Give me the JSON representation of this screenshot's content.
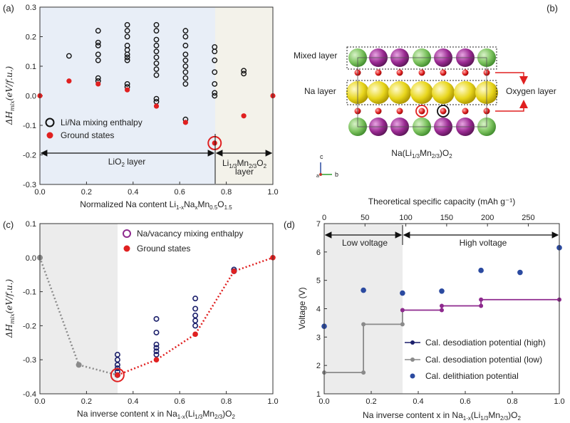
{
  "panels": {
    "a": {
      "panel_label": "(a)",
      "ylabel": "ΔH",
      "ylabel_sub": "mix",
      "ylabel_unit": "(eV/f.u.)",
      "xlabel": "Normalized Na content Li1-xNaxMn0.5O1.5",
      "region_left": "LiO2 layer",
      "region_right_line1": "Li1/3Mn2/3O2",
      "region_right_line2": "layer",
      "legend": [
        "Li/Na mixing enthalpy",
        "Ground states"
      ]
    },
    "b": {
      "panel_label": "(b)",
      "mixed_layer": "Mixed layer",
      "na_layer": "Na layer",
      "oxygen_layer": "Oxygen layer",
      "formula": "Na(Li1/3Mn2/3)O2",
      "axis_c": "c",
      "axis_b": "b",
      "axis_a": "a"
    },
    "c": {
      "panel_label": "(c)",
      "ylabel": "ΔH",
      "ylabel_sub": "mix",
      "ylabel_unit": "(eV/f.u.)",
      "xlabel": "Na inverse content x in Na1-x(Li1/3Mn2/3)O2",
      "legend": [
        "Na/vacancy mixing enthalpy",
        "Ground states"
      ]
    },
    "d": {
      "panel_label": "(d)",
      "ylabel": "Voltage (V)",
      "xlabel": "Na inverse content x in Na1-x(Li1/3Mn2/3)O2",
      "top_xlabel": "Theoretical specific capacity (mAh g⁻¹)",
      "region_low": "Low voltage",
      "region_high": "High voltage",
      "legend": [
        "Cal. desodiation potential (high)",
        "Cal. desodiation potential (low)",
        "Cal. delithiation potential"
      ]
    }
  },
  "colors": {
    "navy": "#1b1f6b",
    "red": "#e02020",
    "grey": "#8a8a8a",
    "purple": "#8e2a8e",
    "blue": "#2b4aa0",
    "shade_blue": "#e8eef7",
    "shade_beige": "#f3f2ea",
    "shade_grey": "#ececec"
  },
  "chart_data": [
    {
      "id": "a",
      "type": "scatter",
      "xlim": [
        0,
        1
      ],
      "ylim": [
        -0.3,
        0.3
      ],
      "xticks": [
        "0.0",
        "0.2",
        "0.4",
        "0.6",
        "0.8",
        "1.0"
      ],
      "yticks": [
        "-0.3",
        "-0.2",
        "-0.1",
        "0.0",
        "0.1",
        "0.2",
        "0.3"
      ],
      "series": [
        {
          "name": "Li/Na mixing enthalpy",
          "points": [
            [
              0.125,
              0.135
            ],
            [
              0.25,
              0.22
            ],
            [
              0.25,
              0.18
            ],
            [
              0.25,
              0.17
            ],
            [
              0.25,
              0.14
            ],
            [
              0.25,
              0.12
            ],
            [
              0.25,
              0.06
            ],
            [
              0.25,
              0.05
            ],
            [
              0.375,
              0.24
            ],
            [
              0.375,
              0.22
            ],
            [
              0.375,
              0.2
            ],
            [
              0.375,
              0.17
            ],
            [
              0.375,
              0.155
            ],
            [
              0.375,
              0.14
            ],
            [
              0.375,
              0.13
            ],
            [
              0.375,
              0.12
            ],
            [
              0.375,
              0.04
            ],
            [
              0.375,
              0.03
            ],
            [
              0.5,
              0.24
            ],
            [
              0.5,
              0.22
            ],
            [
              0.5,
              0.19
            ],
            [
              0.5,
              0.17
            ],
            [
              0.5,
              0.15
            ],
            [
              0.5,
              0.13
            ],
            [
              0.5,
              0.11
            ],
            [
              0.5,
              0.09
            ],
            [
              0.5,
              0.07
            ],
            [
              0.5,
              -0.01
            ],
            [
              0.5,
              -0.02
            ],
            [
              0.625,
              0.22
            ],
            [
              0.625,
              0.2
            ],
            [
              0.625,
              0.17
            ],
            [
              0.625,
              0.14
            ],
            [
              0.625,
              0.12
            ],
            [
              0.625,
              0.1
            ],
            [
              0.625,
              0.08
            ],
            [
              0.625,
              0.06
            ],
            [
              0.625,
              0.04
            ],
            [
              0.625,
              -0.08
            ],
            [
              0.75,
              0.165
            ],
            [
              0.75,
              0.15
            ],
            [
              0.75,
              0.12
            ],
            [
              0.75,
              0.08
            ],
            [
              0.75,
              0.04
            ],
            [
              0.75,
              0.01
            ],
            [
              0.75,
              0.0
            ],
            [
              0.875,
              0.085
            ],
            [
              0.875,
              0.075
            ]
          ]
        },
        {
          "name": "Ground states",
          "points": [
            [
              0,
              0
            ],
            [
              0.125,
              0.05
            ],
            [
              0.25,
              0.04
            ],
            [
              0.375,
              0.02
            ],
            [
              0.5,
              -0.035
            ],
            [
              0.625,
              -0.09
            ],
            [
              0.75,
              -0.16
            ],
            [
              0.875,
              -0.068
            ],
            [
              1,
              0
            ]
          ]
        }
      ],
      "highlight": [
        0.75,
        -0.16
      ]
    },
    {
      "id": "c",
      "type": "scatter",
      "xlim": [
        0,
        1
      ],
      "ylim": [
        -0.4,
        0.1
      ],
      "xticks": [
        "0.0",
        "0.2",
        "0.4",
        "0.6",
        "0.8",
        "1.0"
      ],
      "yticks": [
        "-0.4",
        "-0.3",
        "-0.2",
        "-0.1",
        "0.0",
        "0.1"
      ],
      "series": [
        {
          "name": "Na/vacancy mixing enthalpy",
          "points": [
            [
              0.333,
              -0.285
            ],
            [
              0.333,
              -0.3
            ],
            [
              0.333,
              -0.315
            ],
            [
              0.333,
              -0.325
            ],
            [
              0.333,
              -0.335
            ],
            [
              0.333,
              -0.345
            ],
            [
              0.5,
              -0.18
            ],
            [
              0.5,
              -0.22
            ],
            [
              0.5,
              -0.255
            ],
            [
              0.5,
              -0.265
            ],
            [
              0.5,
              -0.275
            ],
            [
              0.5,
              -0.285
            ],
            [
              0.667,
              -0.12
            ],
            [
              0.667,
              -0.15
            ],
            [
              0.667,
              -0.17
            ],
            [
              0.667,
              -0.185
            ],
            [
              0.667,
              -0.2
            ],
            [
              0.833,
              -0.035
            ],
            [
              0.833,
              -0.04
            ]
          ]
        },
        {
          "name": "Ground states",
          "points": [
            [
              0.333,
              -0.345
            ],
            [
              0.5,
              -0.3
            ],
            [
              0.667,
              -0.225
            ],
            [
              0.833,
              -0.04
            ],
            [
              1,
              0
            ]
          ]
        },
        {
          "name": "Hull (low, grey)",
          "points": [
            [
              0,
              0
            ],
            [
              0.167,
              -0.315
            ],
            [
              0.333,
              -0.345
            ]
          ]
        },
        {
          "name": "Hull (high, red)",
          "points": [
            [
              0.333,
              -0.345
            ],
            [
              0.5,
              -0.3
            ],
            [
              0.667,
              -0.225
            ],
            [
              0.833,
              -0.04
            ],
            [
              1,
              0
            ]
          ]
        }
      ],
      "highlight": [
        0.333,
        -0.345
      ]
    },
    {
      "id": "d",
      "type": "line",
      "xlim": [
        0,
        1
      ],
      "ylim": [
        1,
        7
      ],
      "xticks": [
        "0.0",
        "0.2",
        "0.4",
        "0.6",
        "0.8",
        "1.0"
      ],
      "yticks": [
        "1",
        "2",
        "3",
        "4",
        "5",
        "6",
        "7"
      ],
      "top_ticks": [
        "0",
        "50",
        "100",
        "150",
        "200",
        "250"
      ],
      "top_tick_values": [
        0,
        50,
        100,
        150,
        200,
        250
      ],
      "top_max": 288,
      "series": [
        {
          "name": "Cal. desodiation potential (high)",
          "steps": [
            [
              0.333,
              3.95
            ],
            [
              0.5,
              3.95
            ],
            [
              0.5,
              4.1
            ],
            [
              0.667,
              4.1
            ],
            [
              0.667,
              4.32
            ],
            [
              1,
              4.32
            ]
          ]
        },
        {
          "name": "Cal. desodiation potential (low)",
          "steps": [
            [
              0,
              1.75
            ],
            [
              0.167,
              1.75
            ],
            [
              0.167,
              3.45
            ],
            [
              0.333,
              3.45
            ],
            [
              0.333,
              3.95
            ]
          ]
        },
        {
          "name": "Cal. delithiation potential",
          "points": [
            [
              0,
              3.38
            ],
            [
              0.167,
              4.65
            ],
            [
              0.333,
              4.55
            ],
            [
              0.5,
              4.62
            ],
            [
              0.667,
              5.35
            ],
            [
              0.833,
              5.28
            ],
            [
              1,
              6.15
            ]
          ]
        }
      ]
    }
  ]
}
